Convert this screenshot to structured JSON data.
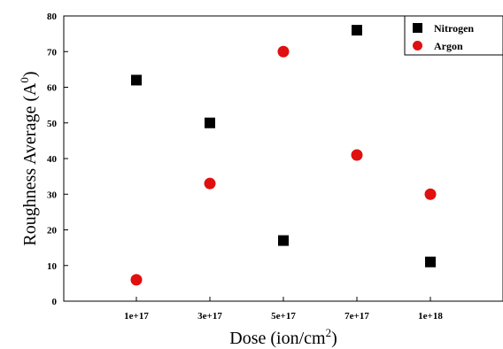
{
  "chart_data": {
    "type": "scatter",
    "title": "",
    "xlabel": "Dose (ion/cm",
    "xlabel_sup": "2",
    "xlabel_end": ")",
    "ylabel": "Roughness Average (A",
    "ylabel_sup": "0",
    "ylabel_end": ")",
    "categories": [
      "1e+17",
      "3e+17",
      "5e+17",
      "7e+17",
      "1e+18"
    ],
    "ylim": [
      0,
      80
    ],
    "yticks": [
      "0",
      "10",
      "20",
      "30",
      "40",
      "50",
      "60",
      "70",
      "80"
    ],
    "grid": false,
    "legend_position": "top-right",
    "series": [
      {
        "name": "Nitrogen",
        "marker": "square",
        "color": "#000000",
        "values": [
          62,
          50,
          17,
          76,
          11
        ]
      },
      {
        "name": "Argon",
        "marker": "circle",
        "color": "#e01010",
        "values": [
          6,
          33,
          70,
          41,
          30
        ]
      }
    ]
  }
}
